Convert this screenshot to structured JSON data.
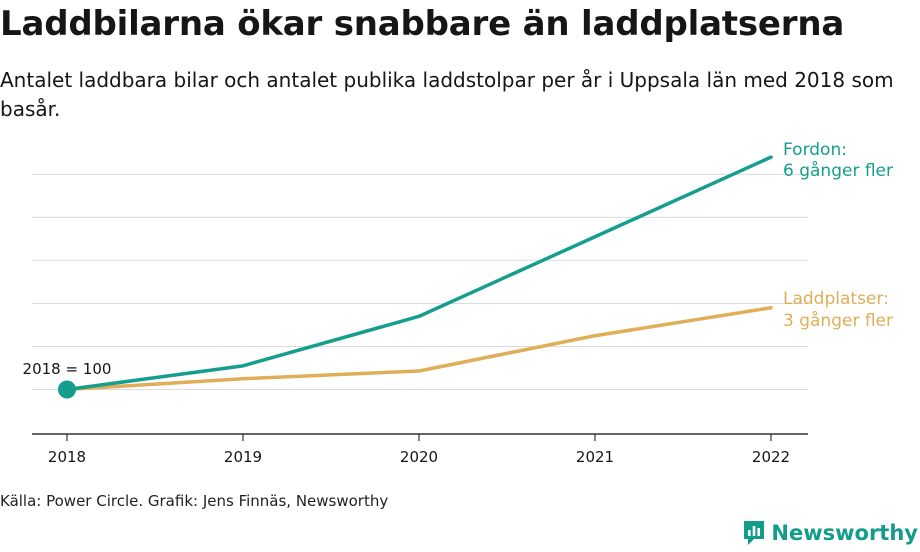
{
  "title": "Laddbilarna ökar snabbare än laddplatserna",
  "subtitle": "Antalet laddbara bilar och antalet publika laddstolpar per år i Uppsala län med 2018 som basår.",
  "source": "Källa: Power Circle. Grafik: Jens Finnäs, Newsworthy",
  "brand": "Newsworthy",
  "chart_data": {
    "type": "line",
    "x": [
      "2018",
      "2019",
      "2020",
      "2021",
      "2022"
    ],
    "ylim": [
      0,
      620
    ],
    "grid": true,
    "baseline_label": "2018 = 100",
    "series": [
      {
        "name": "Fordon",
        "label_line1": "Fordon:",
        "label_line2": "6 gånger fler",
        "color": "#159e8d",
        "values": [
          100,
          155,
          270,
          455,
          640
        ]
      },
      {
        "name": "Laddplatser",
        "label_line1": "Laddplatser:",
        "label_line2": "3 gånger fler",
        "color": "#dfae57",
        "values": [
          100,
          125,
          143,
          225,
          290
        ]
      }
    ]
  },
  "colors": {
    "grid": "#dcdcdc",
    "axis": "#333333",
    "text": "#161616"
  }
}
